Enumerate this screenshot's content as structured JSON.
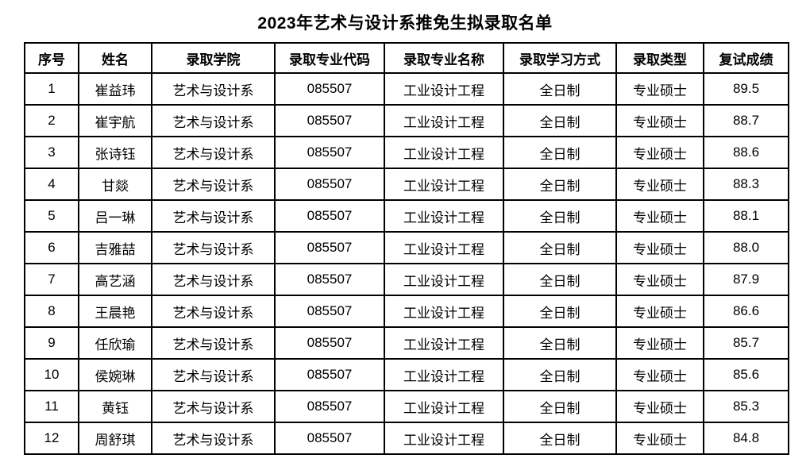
{
  "title": "2023年艺术与设计系推免生拟录取名单",
  "table": {
    "headers": [
      "序号",
      "姓名",
      "录取学院",
      "录取专业代码",
      "录取专业名称",
      "录取学习方式",
      "录取类型",
      "复试成绩"
    ],
    "rows": [
      [
        "1",
        "崔益玮",
        "艺术与设计系",
        "085507",
        "工业设计工程",
        "全日制",
        "专业硕士",
        "89.5"
      ],
      [
        "2",
        "崔宇航",
        "艺术与设计系",
        "085507",
        "工业设计工程",
        "全日制",
        "专业硕士",
        "88.7"
      ],
      [
        "3",
        "张诗钰",
        "艺术与设计系",
        "085507",
        "工业设计工程",
        "全日制",
        "专业硕士",
        "88.6"
      ],
      [
        "4",
        "甘燚",
        "艺术与设计系",
        "085507",
        "工业设计工程",
        "全日制",
        "专业硕士",
        "88.3"
      ],
      [
        "5",
        "吕一琳",
        "艺术与设计系",
        "085507",
        "工业设计工程",
        "全日制",
        "专业硕士",
        "88.1"
      ],
      [
        "6",
        "吉雅喆",
        "艺术与设计系",
        "085507",
        "工业设计工程",
        "全日制",
        "专业硕士",
        "88.0"
      ],
      [
        "7",
        "高艺涵",
        "艺术与设计系",
        "085507",
        "工业设计工程",
        "全日制",
        "专业硕士",
        "87.9"
      ],
      [
        "8",
        "王晨艳",
        "艺术与设计系",
        "085507",
        "工业设计工程",
        "全日制",
        "专业硕士",
        "86.6"
      ],
      [
        "9",
        "任欣瑜",
        "艺术与设计系",
        "085507",
        "工业设计工程",
        "全日制",
        "专业硕士",
        "85.7"
      ],
      [
        "10",
        "侯婉琳",
        "艺术与设计系",
        "085507",
        "工业设计工程",
        "全日制",
        "专业硕士",
        "85.6"
      ],
      [
        "11",
        "黄钰",
        "艺术与设计系",
        "085507",
        "工业设计工程",
        "全日制",
        "专业硕士",
        "85.3"
      ],
      [
        "12",
        "周舒琪",
        "艺术与设计系",
        "085507",
        "工业设计工程",
        "全日制",
        "专业硕士",
        "84.8"
      ]
    ],
    "colors": {
      "border": "#000000",
      "text": "#000000",
      "background": "#ffffff"
    }
  }
}
